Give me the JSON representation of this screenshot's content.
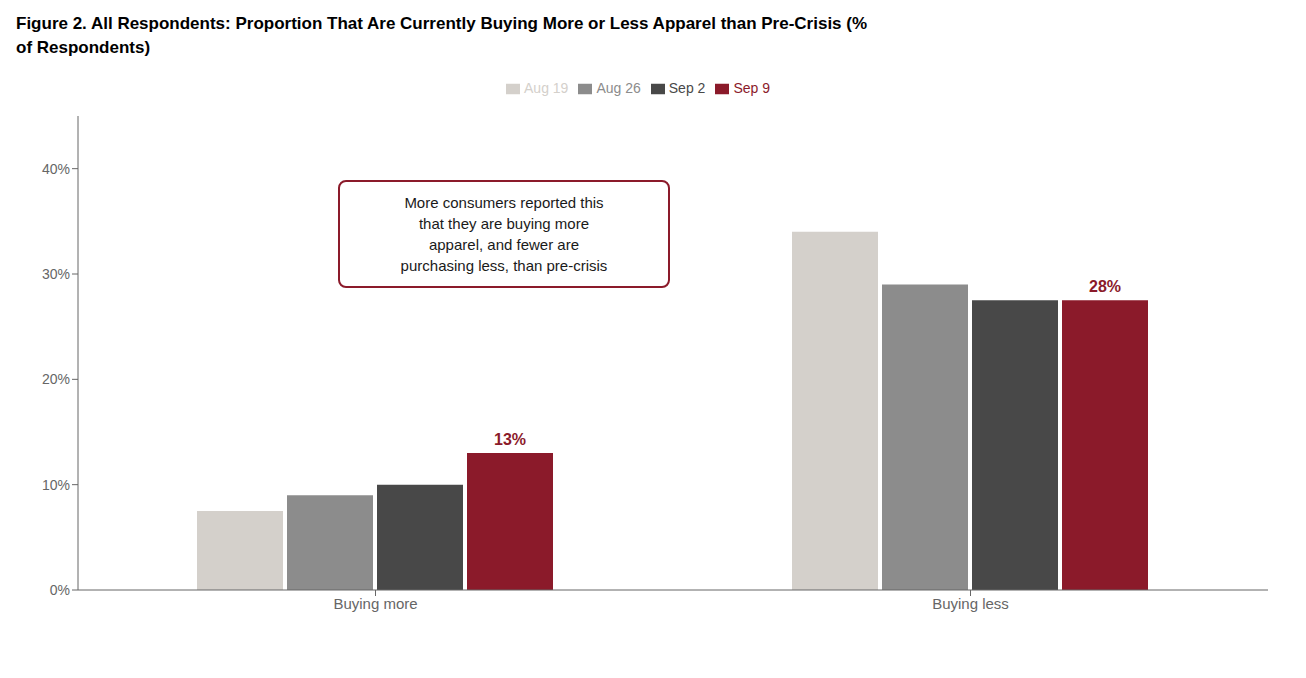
{
  "chart_data": {
    "type": "bar",
    "title": "Figure 2. All Respondents: Proportion That Are Currently Buying More or Less Apparel than Pre-Crisis (%\nof Respondents)",
    "categories": [
      "Buying more",
      "Buying less"
    ],
    "series": [
      {
        "name": "Aug 19",
        "color": "#d4d0cb",
        "values": [
          0.075,
          0.34
        ]
      },
      {
        "name": "Aug 26",
        "color": "#8c8c8c",
        "values": [
          0.09,
          0.29
        ]
      },
      {
        "name": "Sep 2",
        "color": "#484848",
        "values": [
          0.1,
          0.275
        ]
      },
      {
        "name": "Sep 9",
        "color": "#8b1a2a",
        "values": [
          0.13,
          0.275
        ]
      }
    ],
    "ylim": [
      0,
      0.45
    ],
    "yticks": [
      {
        "value": 0,
        "label": "0%"
      },
      {
        "value": 0.1,
        "label": "10%"
      },
      {
        "value": 0.2,
        "label": "20%"
      },
      {
        "value": 0.3,
        "label": "30%"
      },
      {
        "value": 0.4,
        "label": "40%"
      }
    ],
    "grid": false,
    "legend": "top",
    "annotations": [
      {
        "text": "More consumers reported this\nthat they are buying more\napparel, and fewer are\npurchasing less, than pre-crisis"
      },
      {
        "text": "13%",
        "series": "Sep 9",
        "category": "Buying more"
      },
      {
        "text": "28%",
        "series": "Sep 9",
        "category": "Buying less"
      }
    ]
  }
}
